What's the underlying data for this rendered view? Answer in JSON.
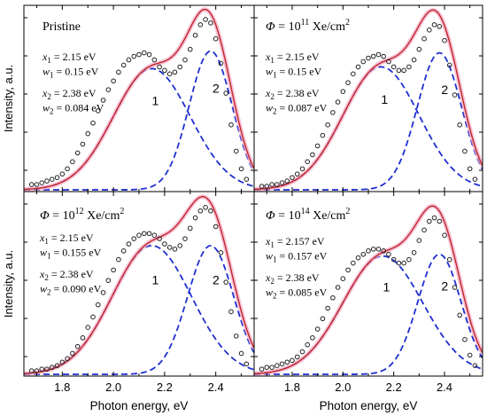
{
  "colors": {
    "fit": "#c0262c",
    "fit_halo": "#f4a9c4",
    "component": "#1f2fd0",
    "points": "#222222",
    "axis": "#000000"
  },
  "chart_data": [
    {
      "type": "line",
      "title": "Pristine",
      "title_parts": [
        "Pristine"
      ],
      "xlabel": "",
      "ylabel": "Intensity, a.u.",
      "xlim": [
        1.65,
        2.55
      ],
      "ylim": [
        0,
        1.0
      ],
      "xticks": [],
      "params": [
        "x₁ = 2.15 eV",
        "w₁ = 0.15 eV",
        "x₂ = 2.38 eV",
        "w₂ = 0.084 eV"
      ],
      "peak_labels": [
        "1",
        "2"
      ],
      "components": [
        {
          "center": 2.15,
          "width": 0.15,
          "amplitude": 0.69
        },
        {
          "center": 2.38,
          "width": 0.084,
          "amplitude": 0.79
        }
      ],
      "points": {
        "x": [
          1.68,
          1.7,
          1.72,
          1.74,
          1.76,
          1.78,
          1.8,
          1.82,
          1.84,
          1.86,
          1.88,
          1.9,
          1.92,
          1.94,
          1.96,
          1.98,
          2.0,
          2.02,
          2.04,
          2.06,
          2.08,
          2.1,
          2.12,
          2.14,
          2.16,
          2.18,
          2.2,
          2.22,
          2.24,
          2.26,
          2.28,
          2.3,
          2.32,
          2.34,
          2.36,
          2.38,
          2.4,
          2.42,
          2.44,
          2.46,
          2.48,
          2.5,
          2.52
        ],
        "y": [
          0.03,
          0.03,
          0.04,
          0.05,
          0.06,
          0.07,
          0.09,
          0.12,
          0.16,
          0.21,
          0.26,
          0.32,
          0.38,
          0.45,
          0.51,
          0.57,
          0.62,
          0.67,
          0.71,
          0.74,
          0.76,
          0.77,
          0.78,
          0.77,
          0.74,
          0.7,
          0.68,
          0.66,
          0.67,
          0.7,
          0.74,
          0.8,
          0.88,
          0.94,
          0.97,
          0.95,
          0.86,
          0.72,
          0.55,
          0.37,
          0.22,
          0.12,
          0.06
        ]
      }
    },
    {
      "type": "line",
      "title": "Φ = 10¹¹ Xe/cm²",
      "title_parts": [
        "Φ",
        " = 10",
        "11",
        " Xe/cm",
        "2"
      ],
      "xlabel": "",
      "ylabel": "",
      "xlim": [
        1.65,
        2.55
      ],
      "ylim": [
        0,
        1.0
      ],
      "xticks": [],
      "params": [
        "x₁ = 2.15 eV",
        "w₁ = 0.15 eV",
        "x₂ = 2.38 eV",
        "w₂ = 0.087 eV"
      ],
      "peak_labels": [
        "1",
        "2"
      ],
      "components": [
        {
          "center": 2.15,
          "width": 0.15,
          "amplitude": 0.7
        },
        {
          "center": 2.38,
          "width": 0.087,
          "amplitude": 0.78
        }
      ],
      "points": {
        "x": [
          1.68,
          1.7,
          1.72,
          1.74,
          1.76,
          1.78,
          1.8,
          1.82,
          1.84,
          1.86,
          1.88,
          1.9,
          1.92,
          1.94,
          1.96,
          1.98,
          2.0,
          2.02,
          2.04,
          2.06,
          2.08,
          2.1,
          2.12,
          2.14,
          2.16,
          2.18,
          2.2,
          2.22,
          2.24,
          2.26,
          2.28,
          2.3,
          2.32,
          2.34,
          2.36,
          2.38,
          2.4,
          2.42,
          2.44,
          2.46,
          2.48,
          2.5,
          2.52
        ],
        "y": [
          0.02,
          0.02,
          0.03,
          0.03,
          0.04,
          0.05,
          0.07,
          0.09,
          0.12,
          0.16,
          0.2,
          0.25,
          0.31,
          0.37,
          0.44,
          0.5,
          0.56,
          0.61,
          0.66,
          0.7,
          0.73,
          0.75,
          0.76,
          0.77,
          0.76,
          0.73,
          0.7,
          0.68,
          0.68,
          0.7,
          0.74,
          0.8,
          0.86,
          0.91,
          0.94,
          0.93,
          0.85,
          0.71,
          0.54,
          0.37,
          0.22,
          0.12,
          0.06
        ]
      }
    },
    {
      "type": "line",
      "title": "Φ = 10¹² Xe/cm²",
      "title_parts": [
        "Φ",
        " = 10",
        "12",
        " Xe/cm",
        "2"
      ],
      "xlabel": "Photon energy, eV",
      "ylabel": "Intensity, a.u.",
      "xlim": [
        1.65,
        2.55
      ],
      "ylim": [
        0,
        1.0
      ],
      "xticks": [
        1.8,
        2.0,
        2.2,
        2.4
      ],
      "xticklabels": [
        "1.8",
        "2.0",
        "2.2",
        "2.4"
      ],
      "params": [
        "x₁ = 2.15 eV",
        "w₁ = 0.155 eV",
        "x₂ = 2.38 eV",
        "w₂ = 0.090 eV"
      ],
      "peak_labels": [
        "1",
        "2"
      ],
      "components": [
        {
          "center": 2.15,
          "width": 0.155,
          "amplitude": 0.74
        },
        {
          "center": 2.38,
          "width": 0.09,
          "amplitude": 0.74
        }
      ],
      "points": {
        "x": [
          1.68,
          1.7,
          1.72,
          1.74,
          1.76,
          1.78,
          1.8,
          1.82,
          1.84,
          1.86,
          1.88,
          1.9,
          1.92,
          1.94,
          1.96,
          1.98,
          2.0,
          2.02,
          2.04,
          2.06,
          2.08,
          2.1,
          2.12,
          2.14,
          2.16,
          2.18,
          2.2,
          2.22,
          2.24,
          2.26,
          2.28,
          2.3,
          2.32,
          2.34,
          2.36,
          2.38,
          2.4,
          2.42,
          2.44,
          2.46,
          2.48,
          2.5,
          2.52
        ],
        "y": [
          0.02,
          0.02,
          0.03,
          0.03,
          0.04,
          0.05,
          0.07,
          0.09,
          0.12,
          0.16,
          0.21,
          0.27,
          0.33,
          0.4,
          0.47,
          0.54,
          0.6,
          0.66,
          0.71,
          0.75,
          0.78,
          0.8,
          0.81,
          0.81,
          0.8,
          0.78,
          0.75,
          0.73,
          0.72,
          0.74,
          0.78,
          0.84,
          0.9,
          0.94,
          0.96,
          0.94,
          0.85,
          0.7,
          0.53,
          0.36,
          0.22,
          0.12,
          0.06
        ]
      }
    },
    {
      "type": "line",
      "title": "Φ = 10¹⁴ Xe/cm²",
      "title_parts": [
        "Φ",
        " = 10",
        "14",
        " Xe/cm",
        "2"
      ],
      "xlabel": "Photon energy, eV",
      "ylabel": "",
      "xlim": [
        1.65,
        2.55
      ],
      "ylim": [
        0,
        1.0
      ],
      "xticks": [
        1.8,
        2.0,
        2.2,
        2.4
      ],
      "xticklabels": [
        "1.8",
        "2.0",
        "2.2",
        "2.4"
      ],
      "params": [
        "x₁ = 2.157 eV",
        "w₁ = 0.157 eV",
        "x₂ = 2.38 eV",
        "w₂ = 0.085 eV"
      ],
      "peak_labels": [
        "1",
        "2"
      ],
      "components": [
        {
          "center": 2.157,
          "width": 0.157,
          "amplitude": 0.68
        },
        {
          "center": 2.38,
          "width": 0.085,
          "amplitude": 0.69
        }
      ],
      "points": {
        "x": [
          1.68,
          1.7,
          1.72,
          1.74,
          1.76,
          1.78,
          1.8,
          1.82,
          1.84,
          1.86,
          1.88,
          1.9,
          1.92,
          1.94,
          1.96,
          1.98,
          2.0,
          2.02,
          2.04,
          2.06,
          2.08,
          2.1,
          2.12,
          2.14,
          2.16,
          2.18,
          2.2,
          2.22,
          2.24,
          2.26,
          2.28,
          2.3,
          2.32,
          2.34,
          2.36,
          2.38,
          2.4,
          2.42,
          2.44,
          2.46,
          2.48,
          2.5,
          2.52
        ],
        "y": [
          0.03,
          0.04,
          0.04,
          0.05,
          0.06,
          0.07,
          0.08,
          0.1,
          0.13,
          0.17,
          0.21,
          0.26,
          0.32,
          0.38,
          0.44,
          0.5,
          0.55,
          0.6,
          0.64,
          0.67,
          0.69,
          0.71,
          0.72,
          0.72,
          0.71,
          0.69,
          0.66,
          0.64,
          0.64,
          0.66,
          0.7,
          0.77,
          0.83,
          0.88,
          0.9,
          0.88,
          0.8,
          0.66,
          0.5,
          0.34,
          0.2,
          0.11,
          0.05
        ]
      }
    }
  ]
}
